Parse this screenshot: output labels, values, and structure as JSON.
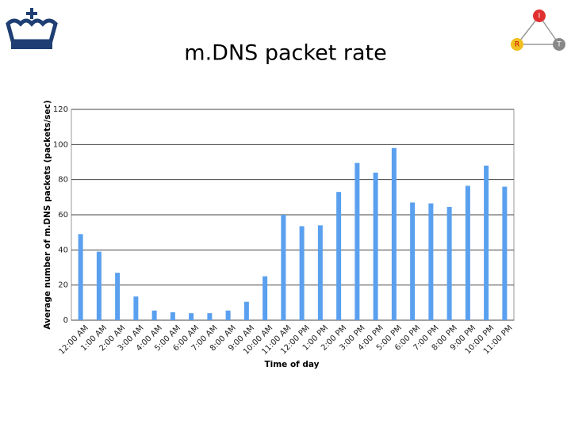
{
  "chart_data": {
    "type": "bar",
    "title": "m.DNS packet rate",
    "x_label": "Time of day",
    "y_label": "Average number of m.DNS packets (packets/sec)",
    "categories": [
      "12:00 AM",
      "1:00 AM",
      "2:00 AM",
      "3:00 AM",
      "4:00 AM",
      "5:00 AM",
      "6:00 AM",
      "7:00 AM",
      "8:00 AM",
      "9:00 AM",
      "10:00 AM",
      "11:00 AM",
      "12:00 PM",
      "1:00 PM",
      "2:00 PM",
      "3:00 PM",
      "4:00 PM",
      "5:00 PM",
      "6:00 PM",
      "7:00 PM",
      "8:00 PM",
      "9:00 PM",
      "10:00 PM",
      "11:00 PM"
    ],
    "values": [
      49,
      39,
      27,
      13.5,
      5.5,
      4.5,
      4,
      4,
      5.5,
      10.5,
      25,
      60,
      53.5,
      54,
      73,
      89.5,
      84,
      98,
      67,
      66.5,
      64.5,
      76.5,
      88,
      76
    ],
    "color": "#5aa0ef",
    "ylim": [
      0,
      120
    ],
    "yticks": [
      0,
      20,
      40,
      60,
      80,
      100,
      120
    ],
    "grid": true
  },
  "logo": {
    "nodes": [
      "I",
      "R",
      "T"
    ]
  }
}
